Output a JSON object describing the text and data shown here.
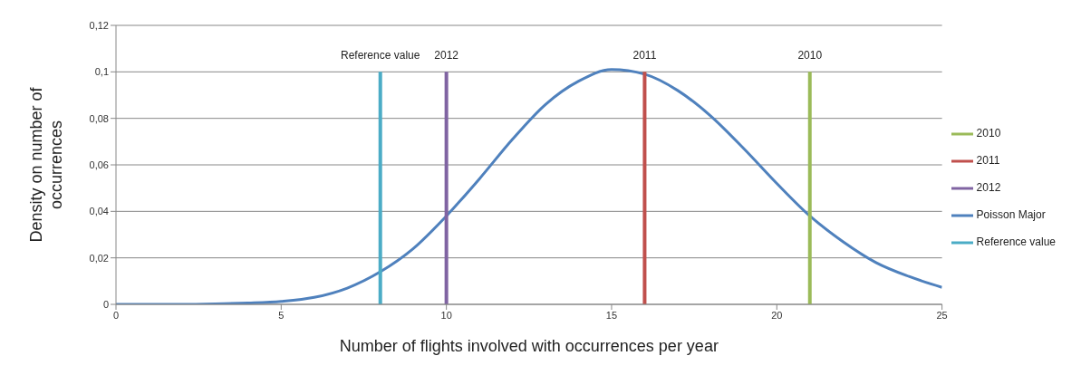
{
  "chart_data": {
    "type": "line",
    "xlabel": "Number of flights involved with occurrences per year",
    "ylabel": "Density on number of occurrences",
    "x": [
      0,
      2,
      3,
      4,
      5,
      6,
      7,
      8,
      9,
      10,
      11,
      12,
      13,
      14,
      15,
      16,
      17,
      18,
      19,
      20,
      21,
      22,
      23,
      24,
      25
    ],
    "series": [
      {
        "name": "Poisson Major",
        "color": "#4f81bd",
        "values": [
          0,
          0,
          0.0002,
          0.0006,
          0.0013,
          0.003,
          0.007,
          0.014,
          0.024,
          0.038,
          0.054,
          0.071,
          0.086,
          0.096,
          0.101,
          0.099,
          0.092,
          0.081,
          0.067,
          0.052,
          0.038,
          0.027,
          0.018,
          0.012,
          0.0073
        ]
      },
      {
        "name": "2010",
        "color": "#9bbb59",
        "x": [
          21,
          21
        ],
        "values": [
          0,
          0.1
        ]
      },
      {
        "name": "2011",
        "color": "#c0504d",
        "x": [
          16,
          16
        ],
        "values": [
          0,
          0.1
        ]
      },
      {
        "name": "2012",
        "color": "#8064a2",
        "x": [
          10,
          10
        ],
        "values": [
          0,
          0.1
        ]
      },
      {
        "name": "Reference value",
        "color": "#4bacc6",
        "x": [
          8,
          8
        ],
        "values": [
          0,
          0.1
        ]
      }
    ],
    "xlim": [
      0,
      25
    ],
    "xticks": [
      0,
      5,
      10,
      15,
      20,
      25
    ],
    "ylim": [
      0,
      0.12
    ],
    "yticks": [
      0,
      {
        "value": 0.02,
        "label": "0,02"
      },
      {
        "value": 0.04,
        "label": "0,04"
      },
      {
        "value": 0.06,
        "label": "0,06"
      },
      {
        "value": 0.08,
        "label": "0,08"
      },
      {
        "value": 0.1,
        "label": "0,1"
      },
      {
        "value": 0.12,
        "label": "0,12"
      }
    ],
    "grid": "y",
    "legend": "right",
    "marker": "none",
    "line_style": "solid"
  }
}
